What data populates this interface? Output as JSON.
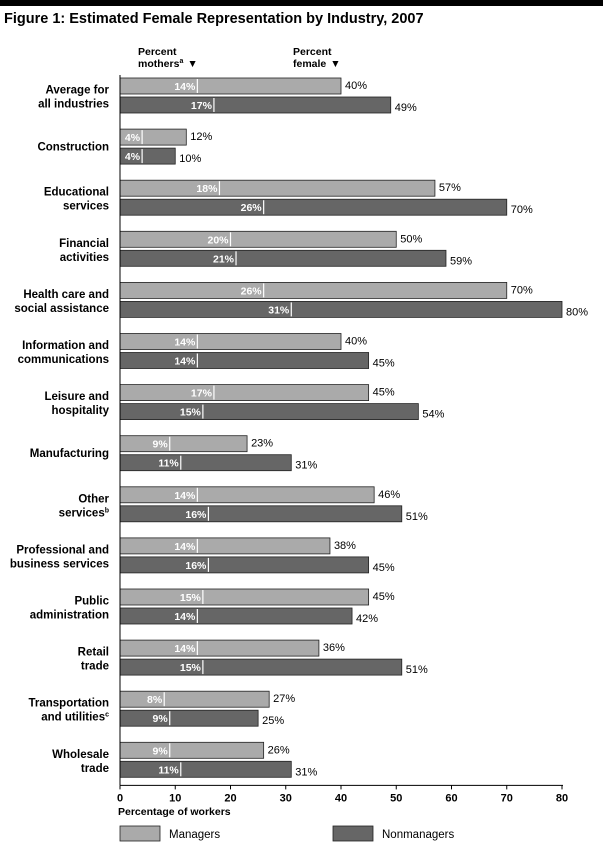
{
  "title": "Figure 1: Estimated Female Representation by Industry, 2007",
  "headers": {
    "mothers_line1": "Percent",
    "mothers_line2": "mothers",
    "mothers_sup": "a",
    "female_line1": "Percent",
    "female_line2": "female",
    "arrow": "▼"
  },
  "colors": {
    "managers": "#aaaaaa",
    "nonmanagers": "#666666"
  },
  "chart_data": {
    "type": "bar",
    "orientation": "horizontal",
    "xlabel": "Percentage of workers",
    "xlim": [
      0,
      80
    ],
    "xticks": [
      0,
      10,
      20,
      30,
      40,
      50,
      60,
      70,
      80
    ],
    "legend": [
      "Managers",
      "Nonmanagers"
    ],
    "categories": [
      {
        "lines": [
          "Average for",
          "all industries"
        ],
        "sup": ""
      },
      {
        "lines": [
          "Construction"
        ],
        "sup": ""
      },
      {
        "lines": [
          "Educational",
          "services"
        ],
        "sup": ""
      },
      {
        "lines": [
          "Financial",
          "activities"
        ],
        "sup": ""
      },
      {
        "lines": [
          "Health care and",
          "social assistance"
        ],
        "sup": ""
      },
      {
        "lines": [
          "Information and",
          "communications"
        ],
        "sup": ""
      },
      {
        "lines": [
          "Leisure and",
          "hospitality"
        ],
        "sup": ""
      },
      {
        "lines": [
          "Manufacturing"
        ],
        "sup": ""
      },
      {
        "lines": [
          "Other",
          "services"
        ],
        "sup": "b"
      },
      {
        "lines": [
          "Professional and",
          "business services"
        ],
        "sup": ""
      },
      {
        "lines": [
          "Public",
          "administration"
        ],
        "sup": ""
      },
      {
        "lines": [
          "Retail",
          "trade"
        ],
        "sup": ""
      },
      {
        "lines": [
          "Transportation",
          "and utilities"
        ],
        "sup": "c"
      },
      {
        "lines": [
          "Wholesale",
          "trade"
        ],
        "sup": ""
      }
    ],
    "series": [
      {
        "name": "Managers",
        "percent_female": [
          40,
          12,
          57,
          50,
          70,
          40,
          45,
          23,
          46,
          38,
          45,
          36,
          27,
          26
        ],
        "percent_mothers": [
          14,
          4,
          18,
          20,
          26,
          14,
          17,
          9,
          14,
          14,
          15,
          14,
          8,
          9
        ]
      },
      {
        "name": "Nonmanagers",
        "percent_female": [
          49,
          10,
          70,
          59,
          80,
          45,
          54,
          31,
          51,
          45,
          42,
          51,
          25,
          31
        ],
        "percent_mothers": [
          17,
          4,
          26,
          21,
          31,
          14,
          15,
          11,
          16,
          16,
          14,
          15,
          9,
          11
        ]
      }
    ]
  }
}
